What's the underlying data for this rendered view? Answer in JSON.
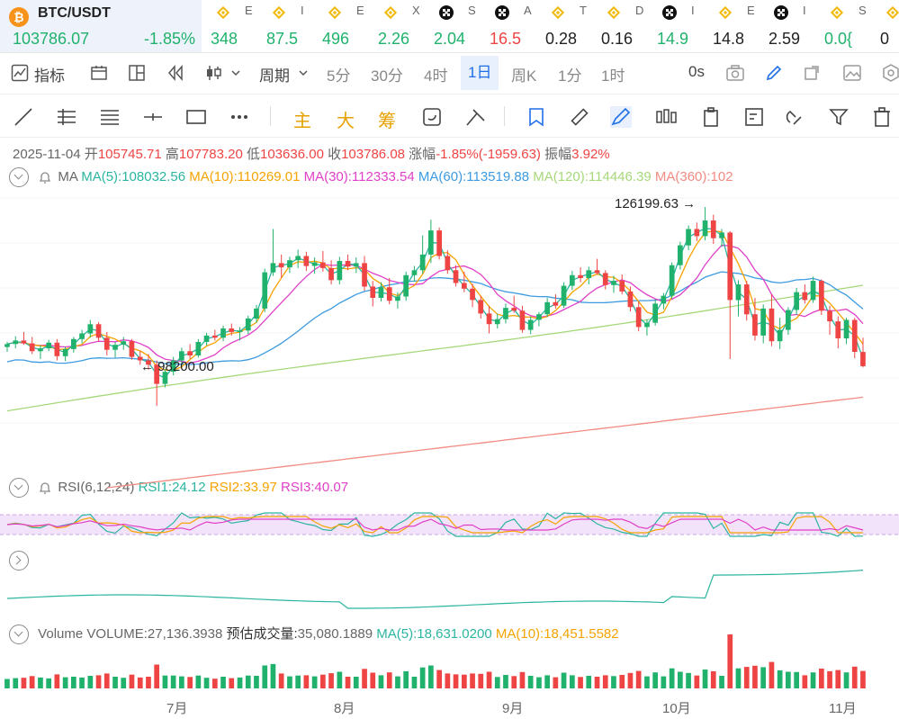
{
  "ticker": {
    "pair": "BTC/USDT",
    "price": "103786.07",
    "change": "-1.85%",
    "items": [
      {
        "icon": "binance-icon",
        "name": "E",
        "value": "348",
        "dir": "up"
      },
      {
        "icon": "binance-icon",
        "name": "I",
        "value": "87.5",
        "dir": "up"
      },
      {
        "icon": "binance-icon",
        "name": "E",
        "value": "496",
        "dir": "up"
      },
      {
        "icon": "binance-icon",
        "name": "X",
        "value": "2.26",
        "dir": "up"
      },
      {
        "icon": "okx-icon",
        "name": "S",
        "value": "2.04",
        "dir": "up"
      },
      {
        "icon": "okx-icon",
        "name": "A",
        "value": "16.5",
        "dir": "down"
      },
      {
        "icon": "binance-icon",
        "name": "T",
        "value": "0.28",
        "dir": "flat"
      },
      {
        "icon": "binance-icon",
        "name": "D",
        "value": "0.16",
        "dir": "flat"
      },
      {
        "icon": "okx-icon",
        "name": "I",
        "value": "14.9",
        "dir": "up"
      },
      {
        "icon": "binance-icon",
        "name": "E",
        "value": "14.8",
        "dir": "flat"
      },
      {
        "icon": "okx-icon",
        "name": "I",
        "value": "2.59",
        "dir": "flat"
      },
      {
        "icon": "binance-icon",
        "name": "S",
        "value": "0.0{",
        "dir": "up"
      },
      {
        "icon": "binance-icon",
        "name": "",
        "value": "0",
        "dir": "flat"
      }
    ]
  },
  "toolbar1": {
    "indicators": "指标",
    "period": "周期",
    "intervals": [
      "5分",
      "30分",
      "4时",
      "1日",
      "周K",
      "1分",
      "1时"
    ],
    "active_interval": "1日",
    "countdown": "0s"
  },
  "toolbar2": {
    "main": "主",
    "big": "大",
    "chip": "筹"
  },
  "ohlc": {
    "date": "2025-11-04",
    "open_label": "开",
    "open": "105745.71",
    "high_label": "高",
    "high": "107783.20",
    "low_label": "低",
    "low": "103636.00",
    "close_label": "收",
    "close": "103786.08",
    "chg_label": "涨幅",
    "chg": "-1.85%(-1959.63)",
    "amp_label": "振幅",
    "amp": "3.92%"
  },
  "ma": {
    "label": "MA",
    "ma5": "MA(5):108032.56",
    "ma10": "MA(10):110269.01",
    "ma30": "MA(30):112333.54",
    "ma60": "MA(60):113519.88",
    "ma120": "MA(120):114446.39",
    "ma360": "MA(360):102"
  },
  "rsi": {
    "label": "RSI(6,12,24)",
    "rsi1": "RSI1:24.12",
    "rsi2": "RSI2:33.97",
    "rsi3": "RSI3:40.07"
  },
  "volume": {
    "label": "Volume",
    "volume": "VOLUME:27,136.3938",
    "est_label": "预估成交量:",
    "est": "35,080.1889",
    "ma5": "MA(5):18,631.0200",
    "ma10": "MA(10):18,451.5582"
  },
  "colors": {
    "up": "#20b26c",
    "down": "#ef4444",
    "ma5": "#2bb5a0",
    "ma10": "#f5a300",
    "ma30": "#e040c8",
    "ma60": "#3c9be0",
    "ma120": "#a6d87a",
    "ma360": "#f28b82"
  },
  "chart_data": {
    "type": "candlestick",
    "x_labels": [
      "7月",
      "8月",
      "9月",
      "10月",
      "11月"
    ],
    "annotations": {
      "high": "126199.63",
      "low": "98200.00"
    },
    "y_range": [
      92000,
      130000
    ],
    "candles": [
      [
        106500,
        107200,
        105800,
        106900
      ],
      [
        106900,
        108000,
        106300,
        107400
      ],
      [
        107400,
        108600,
        106800,
        107000
      ],
      [
        107000,
        107900,
        105500,
        105900
      ],
      [
        105900,
        106700,
        104800,
        106300
      ],
      [
        106300,
        107500,
        105900,
        107100
      ],
      [
        107100,
        107600,
        104600,
        105200
      ],
      [
        105200,
        106500,
        104500,
        106200
      ],
      [
        106200,
        107900,
        105700,
        107600
      ],
      [
        107600,
        108900,
        107000,
        108400
      ],
      [
        108400,
        110300,
        107800,
        109700
      ],
      [
        109700,
        110000,
        107300,
        107800
      ],
      [
        107800,
        108600,
        105300,
        106100
      ],
      [
        106100,
        107200,
        105000,
        106800
      ],
      [
        106800,
        107900,
        106100,
        107300
      ],
      [
        107300,
        107600,
        104700,
        105100
      ],
      [
        105100,
        105900,
        104000,
        104600
      ],
      [
        104600,
        105500,
        103300,
        104000
      ],
      [
        104000,
        104600,
        98200,
        101300
      ],
      [
        101300,
        103400,
        100800,
        103000
      ],
      [
        103000,
        105100,
        102500,
        104600
      ],
      [
        104600,
        106400,
        104100,
        105900
      ],
      [
        105900,
        106900,
        104800,
        105300
      ],
      [
        105300,
        107600,
        105000,
        107200
      ],
      [
        107200,
        108500,
        106700,
        108100
      ],
      [
        108100,
        108900,
        107400,
        107800
      ],
      [
        107800,
        109500,
        107300,
        109100
      ],
      [
        109100,
        109800,
        108100,
        108600
      ],
      [
        108600,
        109300,
        107400,
        108800
      ],
      [
        108800,
        110900,
        108300,
        110500
      ],
      [
        110500,
        112400,
        109900,
        111900
      ],
      [
        111900,
        117500,
        111400,
        117000
      ],
      [
        117000,
        123100,
        116500,
        118300
      ],
      [
        118300,
        119500,
        116200,
        117700
      ],
      [
        117700,
        119200,
        116900,
        118700
      ],
      [
        118700,
        120200,
        117600,
        119300
      ],
      [
        119300,
        119900,
        117200,
        117900
      ],
      [
        117900,
        119100,
        116800,
        118400
      ],
      [
        118400,
        120000,
        117100,
        117600
      ],
      [
        117600,
        118700,
        115300,
        115900
      ],
      [
        115900,
        119200,
        115300,
        118600
      ],
      [
        118600,
        119500,
        117300,
        117800
      ],
      [
        117800,
        119100,
        116900,
        118300
      ],
      [
        118300,
        119300,
        114400,
        115000
      ],
      [
        115000,
        115800,
        112200,
        113400
      ],
      [
        113400,
        115600,
        112900,
        114900
      ],
      [
        114900,
        116200,
        112500,
        113000
      ],
      [
        113000,
        114200,
        111900,
        113600
      ],
      [
        113600,
        117100,
        113000,
        116600
      ],
      [
        116600,
        117900,
        115700,
        117300
      ],
      [
        117300,
        122200,
        116800,
        119500
      ],
      [
        119500,
        124400,
        118300,
        122900
      ],
      [
        122900,
        123300,
        118800,
        119300
      ],
      [
        119300,
        120100,
        116800,
        117300
      ],
      [
        117300,
        118000,
        115000,
        115500
      ],
      [
        115500,
        117100,
        114200,
        114700
      ],
      [
        114700,
        115400,
        112100,
        113100
      ],
      [
        113100,
        113700,
        110500,
        111200
      ],
      [
        111200,
        112300,
        108400,
        109700
      ],
      [
        109700,
        111200,
        109100,
        110400
      ],
      [
        110400,
        112600,
        109800,
        112000
      ],
      [
        112000,
        113700,
        111300,
        111600
      ],
      [
        111600,
        112300,
        108500,
        108900
      ],
      [
        108900,
        110800,
        108300,
        110300
      ],
      [
        110300,
        111400,
        109400,
        111100
      ],
      [
        111100,
        113400,
        110700,
        112800
      ],
      [
        112800,
        113900,
        111900,
        112300
      ],
      [
        112300,
        115600,
        112000,
        115100
      ],
      [
        115100,
        117200,
        114500,
        116600
      ],
      [
        116600,
        117700,
        115600,
        116200
      ],
      [
        116200,
        117800,
        115300,
        117300
      ],
      [
        117300,
        118900,
        116700,
        116900
      ],
      [
        116900,
        117300,
        114600,
        115200
      ],
      [
        115200,
        116500,
        114100,
        115800
      ],
      [
        115800,
        116700,
        113900,
        114300
      ],
      [
        114300,
        115000,
        111500,
        112100
      ],
      [
        112100,
        112900,
        108700,
        109300
      ],
      [
        109300,
        110400,
        108100,
        109900
      ],
      [
        109900,
        113200,
        109500,
        112600
      ],
      [
        112600,
        114100,
        111800,
        113700
      ],
      [
        113700,
        118400,
        113300,
        118000
      ],
      [
        118000,
        121300,
        117400,
        120800
      ],
      [
        120800,
        123600,
        120100,
        123100
      ],
      [
        123100,
        124000,
        121400,
        122100
      ],
      [
        122100,
        126200,
        121500,
        124300
      ],
      [
        124300,
        125100,
        121000,
        121800
      ],
      [
        121800,
        123100,
        120600,
        122600
      ],
      [
        122600,
        122800,
        104800,
        113100
      ],
      [
        113100,
        115900,
        110800,
        115300
      ],
      [
        115300,
        115800,
        110200,
        111100
      ],
      [
        111100,
        113400,
        107400,
        108100
      ],
      [
        108100,
        112500,
        107000,
        111900
      ],
      [
        111900,
        113900,
        106600,
        107300
      ],
      [
        107300,
        110600,
        106200,
        108900
      ],
      [
        108900,
        112100,
        108200,
        111700
      ],
      [
        111700,
        114800,
        111000,
        114200
      ],
      [
        114200,
        115300,
        112600,
        113100
      ],
      [
        113100,
        116400,
        112700,
        115800
      ],
      [
        115800,
        116000,
        111000,
        111600
      ],
      [
        111600,
        112300,
        108200,
        110100
      ],
      [
        110100,
        110800,
        106300,
        107700
      ],
      [
        107700,
        110600,
        106900,
        110300
      ],
      [
        110300,
        110600,
        104900,
        105800
      ],
      [
        105800,
        107800,
        103600,
        103800
      ]
    ]
  }
}
